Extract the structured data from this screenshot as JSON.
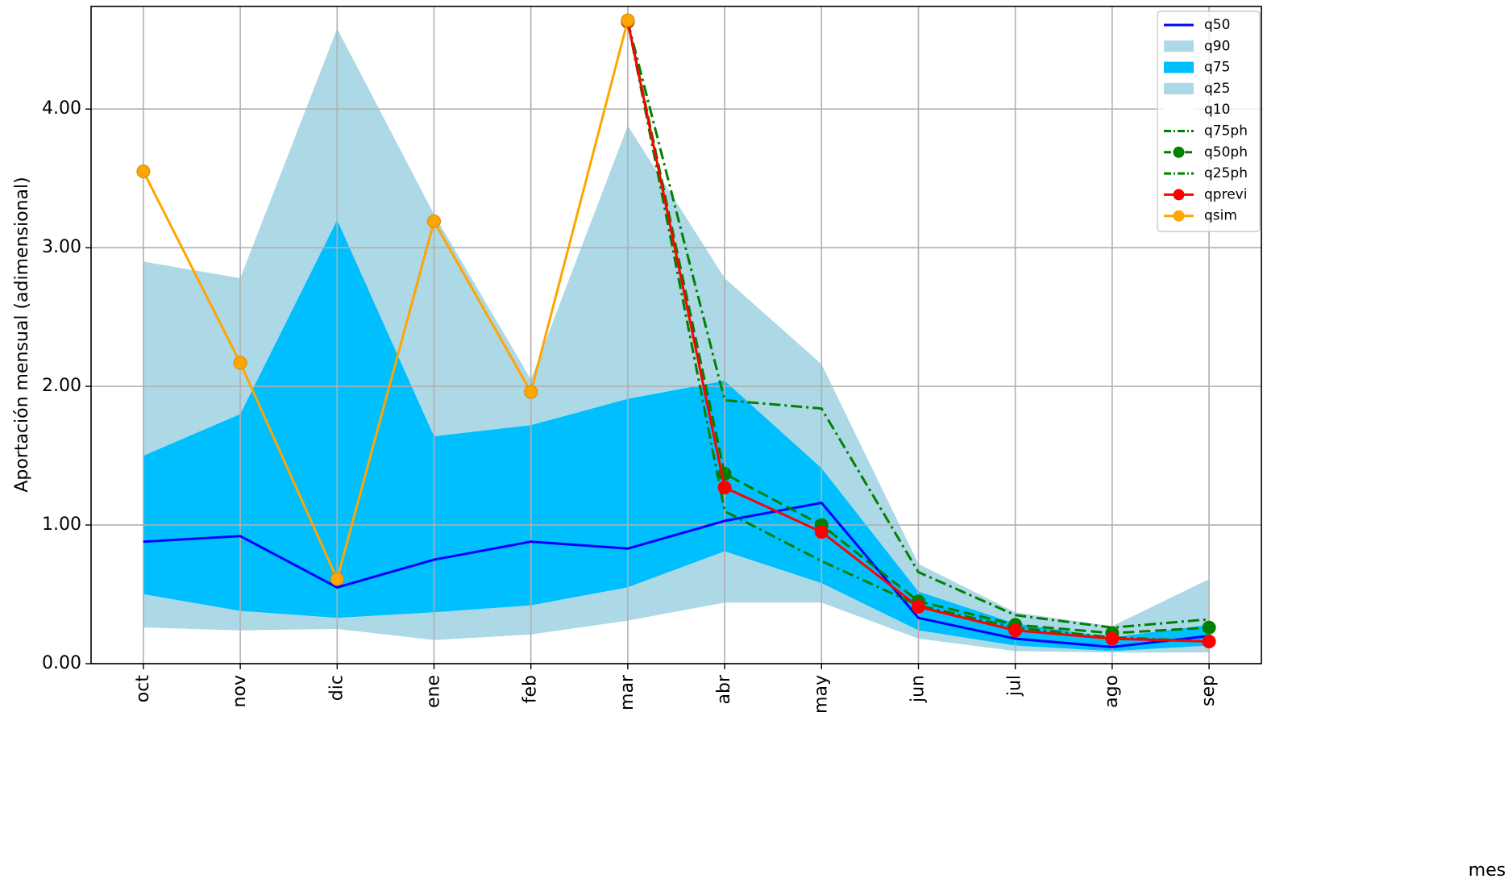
{
  "chart_data": {
    "type": "line",
    "xlabel": "mes",
    "ylabel": "Aportación mensual (adimensional)",
    "categories": [
      "oct",
      "nov",
      "dic",
      "ene",
      "feb",
      "mar",
      "abr",
      "may",
      "jun",
      "jul",
      "ago",
      "sep"
    ],
    "ylim": [
      0,
      4.74
    ],
    "yticks": [
      {
        "value": 0,
        "label": "0.00"
      },
      {
        "value": 1,
        "label": "1.00"
      },
      {
        "value": 2,
        "label": "2.00"
      },
      {
        "value": 3,
        "label": "3.00"
      },
      {
        "value": 4,
        "label": "4.00"
      }
    ],
    "grid": true,
    "legend": "upper right",
    "series": [
      {
        "name": "q50",
        "kind": "line",
        "color": "#0000ff",
        "values": [
          0.88,
          0.92,
          0.55,
          0.75,
          0.88,
          0.83,
          1.03,
          1.16,
          0.33,
          0.18,
          0.12,
          0.2
        ]
      },
      {
        "name": "q90",
        "kind": "area",
        "color": "#add8e6",
        "values": [
          2.9,
          2.78,
          4.58,
          3.24,
          2.05,
          3.88,
          2.78,
          2.16,
          0.72,
          0.37,
          0.27,
          0.61
        ]
      },
      {
        "name": "q75",
        "kind": "area",
        "color": "#00bfff",
        "values": [
          1.5,
          1.8,
          3.2,
          1.64,
          1.72,
          1.91,
          2.04,
          1.41,
          0.52,
          0.29,
          0.19,
          0.28
        ]
      },
      {
        "name": "q25",
        "kind": "area",
        "color": "#add8e6",
        "values": [
          0.5,
          0.38,
          0.33,
          0.37,
          0.42,
          0.55,
          0.81,
          0.58,
          0.24,
          0.13,
          0.09,
          0.13
        ]
      },
      {
        "name": "q10",
        "kind": "area",
        "color": "#ffffff",
        "values": [
          0.26,
          0.24,
          0.25,
          0.17,
          0.21,
          0.31,
          0.44,
          0.44,
          0.18,
          0.09,
          0.08,
          0.08
        ]
      },
      {
        "name": "q75ph",
        "kind": "line",
        "dash": "dashdot",
        "color": "#008000",
        "values": [
          null,
          null,
          null,
          null,
          null,
          4.63,
          1.9,
          1.84,
          0.66,
          0.35,
          0.26,
          0.32
        ]
      },
      {
        "name": "q50ph",
        "kind": "line",
        "dash": "dashed",
        "marker": true,
        "color": "#008000",
        "values": [
          null,
          null,
          null,
          null,
          null,
          4.63,
          1.37,
          1.0,
          0.45,
          0.28,
          0.22,
          0.26
        ]
      },
      {
        "name": "q25ph",
        "kind": "line",
        "dash": "dashdot",
        "color": "#008000",
        "values": [
          null,
          null,
          null,
          null,
          null,
          4.63,
          1.1,
          0.74,
          0.42,
          0.26,
          0.19,
          0.16
        ]
      },
      {
        "name": "qprevi",
        "kind": "line",
        "marker": true,
        "color": "#ff0000",
        "values": [
          null,
          null,
          null,
          null,
          null,
          4.63,
          1.27,
          0.95,
          0.41,
          0.24,
          0.18,
          0.16
        ]
      },
      {
        "name": "qsim",
        "kind": "line",
        "marker": true,
        "color": "#ffa500",
        "values": [
          3.55,
          2.17,
          0.61,
          3.19,
          1.96,
          4.64,
          null,
          null,
          null,
          null,
          null,
          null
        ]
      }
    ]
  }
}
